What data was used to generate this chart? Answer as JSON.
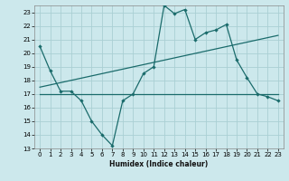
{
  "xlabel": "Humidex (Indice chaleur)",
  "background_color": "#cce8ec",
  "grid_color": "#aacfd4",
  "line_color": "#1a6b6b",
  "xlim": [
    -0.5,
    23.5
  ],
  "ylim": [
    13,
    23.5
  ],
  "yticks": [
    13,
    14,
    15,
    16,
    17,
    18,
    19,
    20,
    21,
    22,
    23
  ],
  "xticks": [
    0,
    1,
    2,
    3,
    4,
    5,
    6,
    7,
    8,
    9,
    10,
    11,
    12,
    13,
    14,
    15,
    16,
    17,
    18,
    19,
    20,
    21,
    22,
    23
  ],
  "series1_x": [
    0,
    1,
    2,
    3,
    4,
    5,
    6,
    7,
    8,
    9,
    10,
    11,
    12,
    13,
    14,
    15,
    16,
    17,
    18,
    19,
    20,
    21,
    22,
    23
  ],
  "series1_y": [
    20.5,
    18.7,
    17.2,
    17.2,
    16.5,
    15.0,
    14.0,
    13.2,
    16.5,
    17.0,
    18.5,
    19.0,
    23.5,
    22.9,
    23.2,
    21.0,
    21.5,
    21.7,
    22.1,
    19.5,
    18.2,
    17.0,
    16.8,
    16.5
  ],
  "series2_x": [
    0,
    23
  ],
  "series2_y": [
    17.0,
    17.0
  ],
  "series3_x": [
    0,
    23
  ],
  "series3_y": [
    17.5,
    21.3
  ]
}
